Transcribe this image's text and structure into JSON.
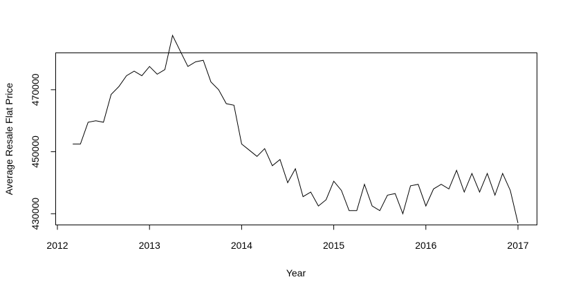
{
  "chart_data": {
    "type": "line",
    "xlabel": "Year",
    "ylabel": "Average Resale Flat Price",
    "xlim": [
      2012.0,
      2017.0
    ],
    "ylim": [
      426500,
      482000
    ],
    "x_ticks": [
      2012,
      2013,
      2014,
      2015,
      2016,
      2017
    ],
    "y_ticks": [
      430000,
      450000,
      470000
    ],
    "grid": false,
    "colors": {
      "line": "#000000",
      "axis": "#000000",
      "background": "#ffffff"
    },
    "series": [
      {
        "x": [
          2012.1667,
          2012.25,
          2012.3333,
          2012.4167,
          2012.5,
          2012.5833,
          2012.6667,
          2012.75,
          2012.8333,
          2012.9167,
          2013.0,
          2013.0833,
          2013.1667,
          2013.25,
          2013.3333,
          2013.4167,
          2013.5,
          2013.5833,
          2013.6667,
          2013.75,
          2013.8333,
          2013.9167,
          2014.0,
          2014.0833,
          2014.1667,
          2014.25,
          2014.3333,
          2014.4167,
          2014.5,
          2014.5833,
          2014.6667,
          2014.75,
          2014.8333,
          2014.9167,
          2015.0,
          2015.0833,
          2015.1667,
          2015.25,
          2015.3333,
          2015.4167,
          2015.5,
          2015.5833,
          2015.6667,
          2015.75,
          2015.8333,
          2015.9167,
          2016.0,
          2016.0833,
          2016.1667,
          2016.25,
          2016.3333,
          2016.4167,
          2016.5,
          2016.5833,
          2016.6667,
          2016.75,
          2016.8333,
          2016.9167,
          2017.0
        ],
        "values": [
          452500,
          452500,
          459500,
          460000,
          459500,
          468500,
          471000,
          474500,
          476000,
          474500,
          477500,
          475000,
          476500,
          487500,
          482500,
          477500,
          479000,
          479500,
          472500,
          470000,
          465500,
          465000,
          452500,
          450500,
          448500,
          451000,
          445500,
          447500,
          440000,
          444500,
          435500,
          437000,
          432500,
          434500,
          440500,
          437500,
          431000,
          431000,
          439500,
          432500,
          431000,
          436000,
          436500,
          430000,
          439000,
          439500,
          432500,
          438000,
          439500,
          438000,
          444000,
          437000,
          443000,
          437000,
          443000,
          436000,
          443000,
          437500,
          427000
        ]
      }
    ]
  }
}
